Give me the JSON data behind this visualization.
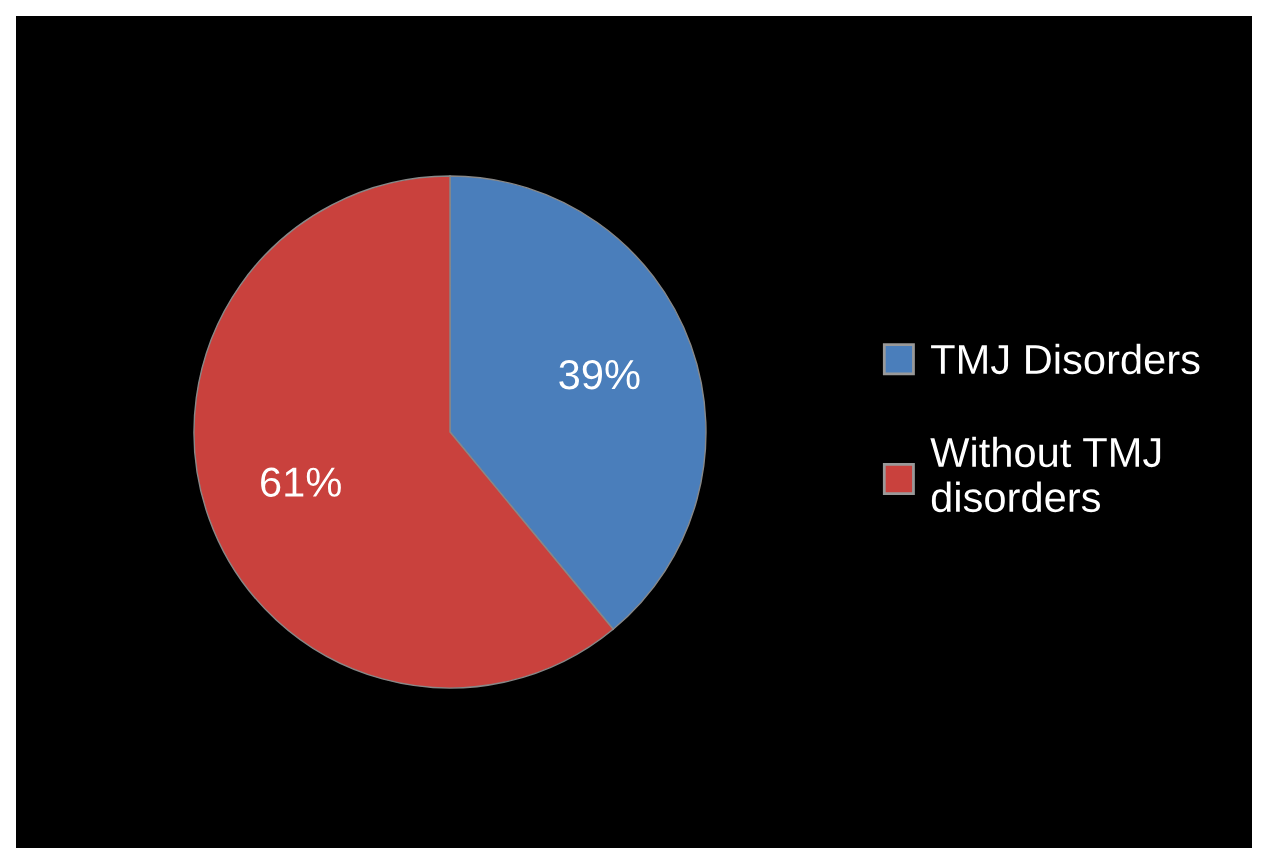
{
  "chart_data": {
    "type": "pie",
    "categories": [
      "TMJ Disorders",
      "Without TMJ\ndisorders"
    ],
    "values": [
      39,
      61
    ],
    "colors": [
      "#4a7ebb",
      "#c9413d"
    ],
    "value_labels": [
      "39%",
      "61%"
    ],
    "legend": "right"
  }
}
